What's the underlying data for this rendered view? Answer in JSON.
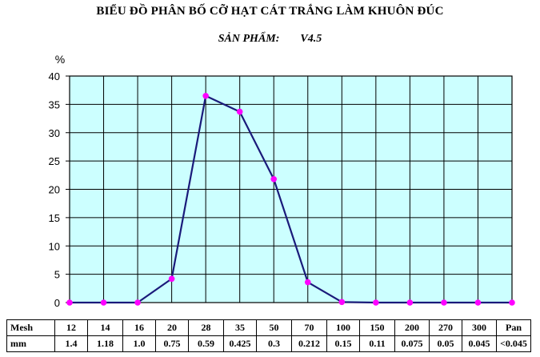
{
  "title": "BIỂU ĐỒ PHÂN BỐ CỠ HẠT CÁT TRẮNG LÀM KHUÔN ĐÚC",
  "subtitle": {
    "label": "SẢN PHẨM:",
    "value": "V4.5"
  },
  "chart_data": {
    "type": "line",
    "title": "BIỂU ĐỒ PHÂN BỐ CỠ HẠT CÁT TRẮNG LÀM KHUÔN ĐÚC",
    "ylabel": "%",
    "xlabel": "",
    "ylim": [
      0,
      40
    ],
    "yticks": [
      0,
      5,
      10,
      15,
      20,
      25,
      30,
      35,
      40
    ],
    "grid": true,
    "plot_background": "#ccffff",
    "line_color": "#1a1a7a",
    "marker_color": "#ff00ff",
    "categories": [
      "12",
      "14",
      "16",
      "20",
      "28",
      "35",
      "50",
      "70",
      "100",
      "150",
      "200",
      "270",
      "300",
      "Pan"
    ],
    "series": [
      {
        "values": [
          0,
          0,
          0,
          4.2,
          36.5,
          33.7,
          21.8,
          3.6,
          0.1,
          0,
          0,
          0,
          0,
          0
        ]
      }
    ]
  },
  "scale_table": {
    "mesh_label": "Mesh",
    "mm_label": "mm",
    "mesh": [
      "12",
      "14",
      "16",
      "20",
      "28",
      "35",
      "50",
      "70",
      "100",
      "150",
      "200",
      "270",
      "300",
      "Pan"
    ],
    "mm": [
      "1.4",
      "1.18",
      "1.0",
      "0.75",
      "0.59",
      "0.425",
      "0.3",
      "0.212",
      "0.15",
      "0.11",
      "0.075",
      "0.05",
      "0.045",
      "<0.045"
    ]
  }
}
